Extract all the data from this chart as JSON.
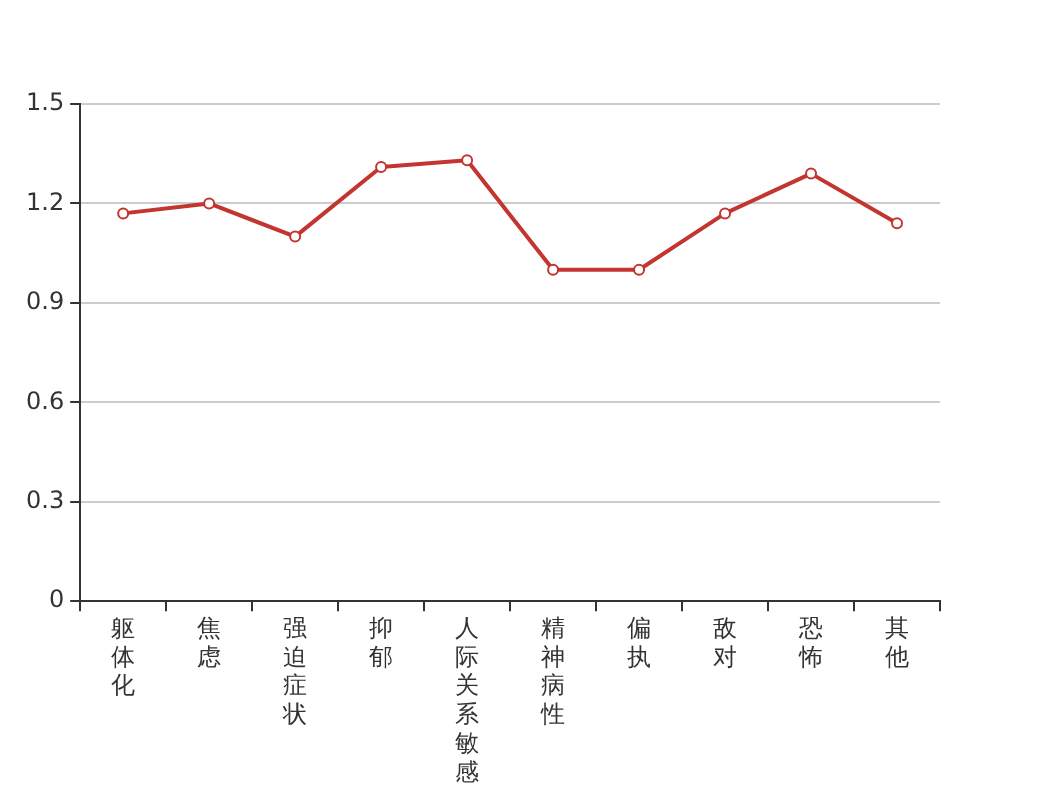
{
  "chart_data": {
    "type": "line",
    "categories": [
      "躯体化",
      "焦虑",
      "强迫症状",
      "抑郁",
      "人际关系敏感",
      "精神病性",
      "偏执",
      "敌对",
      "恐怖",
      "其他"
    ],
    "series": [
      {
        "color": "#c23531",
        "values": [
          1.17,
          1.2,
          1.1,
          1.31,
          1.33,
          1.0,
          1.0,
          1.17,
          1.29,
          1.14
        ]
      }
    ],
    "ylim": [
      0,
      1.5
    ],
    "yticks": [
      0,
      0.3,
      0.6,
      0.9,
      1.2,
      1.5
    ],
    "grid": "y",
    "legend": false,
    "marker": "circle",
    "line_style": "solid"
  }
}
